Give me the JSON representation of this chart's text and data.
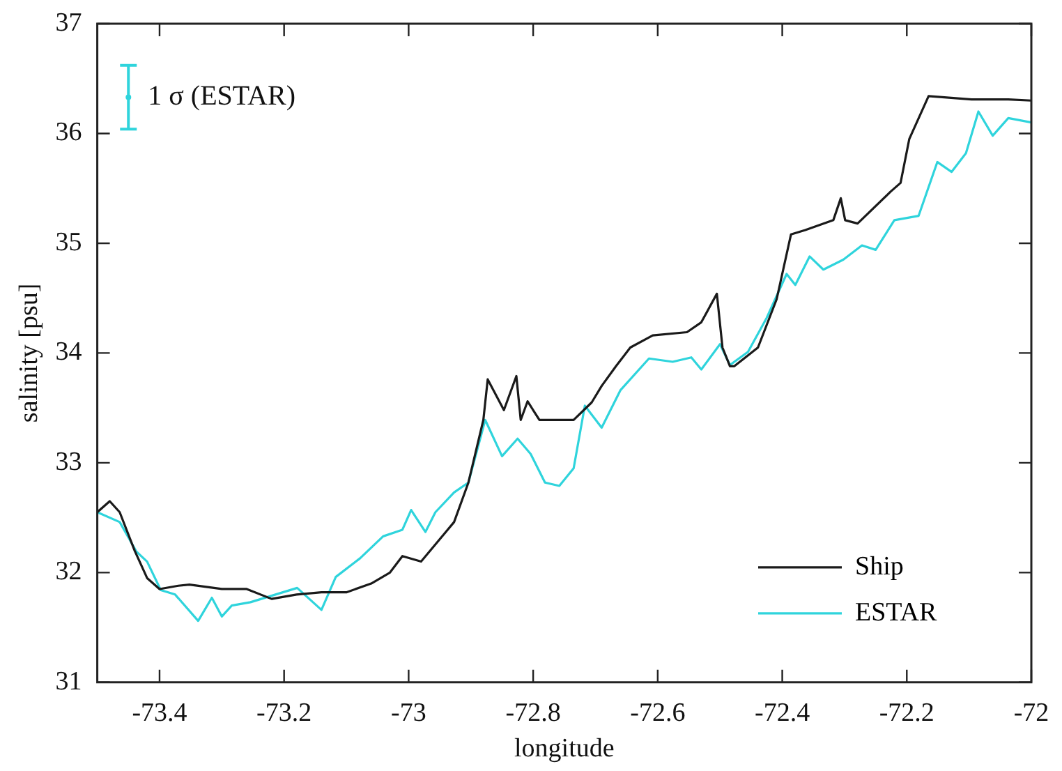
{
  "chart_data": {
    "type": "line",
    "xlabel": "longitude",
    "ylabel": "salinity [psu]",
    "xlim": [
      -73.5,
      -72.0
    ],
    "xticks": [
      -73.4,
      -73.2,
      -73.0,
      -72.8,
      -72.6,
      -72.4,
      -72.2,
      -72.0
    ],
    "ylim": [
      31,
      37
    ],
    "yticks": [
      31,
      32,
      33,
      34,
      35,
      36,
      37
    ],
    "grid": false,
    "legend": "bottom right",
    "line_style": "solid",
    "annotations": [
      {
        "text": "1 σ (ESTAR)",
        "x": -73.45,
        "y": 36.33
      }
    ],
    "series": [
      {
        "name": "Ship",
        "color": "#1a1a1a",
        "x": [
          -73.5,
          -73.48,
          -73.464,
          -73.44,
          -73.42,
          -73.4,
          -73.37,
          -73.352,
          -73.3,
          -73.26,
          -73.22,
          -73.18,
          -73.14,
          -73.1,
          -73.06,
          -73.03,
          -73.01,
          -72.98,
          -72.927,
          -72.904,
          -72.88,
          -72.873,
          -72.847,
          -72.827,
          -72.82,
          -72.809,
          -72.79,
          -72.735,
          -72.706,
          -72.69,
          -72.667,
          -72.644,
          -72.608,
          -72.553,
          -72.53,
          -72.505,
          -72.496,
          -72.484,
          -72.477,
          -72.439,
          -72.409,
          -72.386,
          -72.363,
          -72.318,
          -72.306,
          -72.299,
          -72.279,
          -72.226,
          -72.21,
          -72.196,
          -72.165,
          -72.096,
          -72.037,
          -72.0
        ],
        "values": [
          32.55,
          32.65,
          32.55,
          32.2,
          31.95,
          31.85,
          31.88,
          31.89,
          31.85,
          31.85,
          31.76,
          31.8,
          31.82,
          31.82,
          31.9,
          32.0,
          32.15,
          32.1,
          32.46,
          32.82,
          33.39,
          33.76,
          33.48,
          33.79,
          33.39,
          33.56,
          33.39,
          33.39,
          33.55,
          33.7,
          33.88,
          34.05,
          34.16,
          34.19,
          34.28,
          34.54,
          34.05,
          33.88,
          33.88,
          34.05,
          34.49,
          35.08,
          35.12,
          35.21,
          35.41,
          35.21,
          35.18,
          35.47,
          35.55,
          35.95,
          36.34,
          36.31,
          36.31,
          36.3
        ]
      },
      {
        "name": "ESTAR",
        "color": "#2fd4dc",
        "x": [
          -73.5,
          -73.464,
          -73.437,
          -73.42,
          -73.398,
          -73.375,
          -73.338,
          -73.316,
          -73.3,
          -73.284,
          -73.254,
          -73.179,
          -73.14,
          -73.117,
          -73.078,
          -73.041,
          -73.01,
          -72.996,
          -72.973,
          -72.957,
          -72.927,
          -72.904,
          -72.877,
          -72.85,
          -72.825,
          -72.804,
          -72.781,
          -72.758,
          -72.735,
          -72.717,
          -72.69,
          -72.66,
          -72.614,
          -72.576,
          -72.546,
          -72.53,
          -72.5,
          -72.484,
          -72.477,
          -72.455,
          -72.425,
          -72.393,
          -72.379,
          -72.356,
          -72.334,
          -72.302,
          -72.272,
          -72.25,
          -72.22,
          -72.181,
          -72.151,
          -72.128,
          -72.105,
          -72.085,
          -72.062,
          -72.037,
          -72.0
        ],
        "values": [
          32.55,
          32.46,
          32.19,
          32.1,
          31.84,
          31.8,
          31.56,
          31.77,
          31.6,
          31.7,
          31.73,
          31.86,
          31.66,
          31.96,
          32.13,
          32.33,
          32.39,
          32.57,
          32.37,
          32.55,
          32.73,
          32.82,
          33.39,
          33.06,
          33.22,
          33.08,
          32.82,
          32.79,
          32.95,
          33.52,
          33.32,
          33.66,
          33.95,
          33.92,
          33.96,
          33.85,
          34.08,
          33.89,
          33.92,
          34.01,
          34.32,
          34.72,
          34.62,
          34.88,
          34.76,
          34.85,
          34.98,
          34.94,
          35.21,
          35.25,
          35.74,
          35.65,
          35.82,
          36.2,
          35.98,
          36.14,
          36.1
        ]
      },
      {
        "type": "scatter",
        "color": "#2fd4dc",
        "x": [
          -73.45
        ],
        "values": [
          36.33
        ],
        "errors": [
          0.29
        ]
      }
    ]
  }
}
